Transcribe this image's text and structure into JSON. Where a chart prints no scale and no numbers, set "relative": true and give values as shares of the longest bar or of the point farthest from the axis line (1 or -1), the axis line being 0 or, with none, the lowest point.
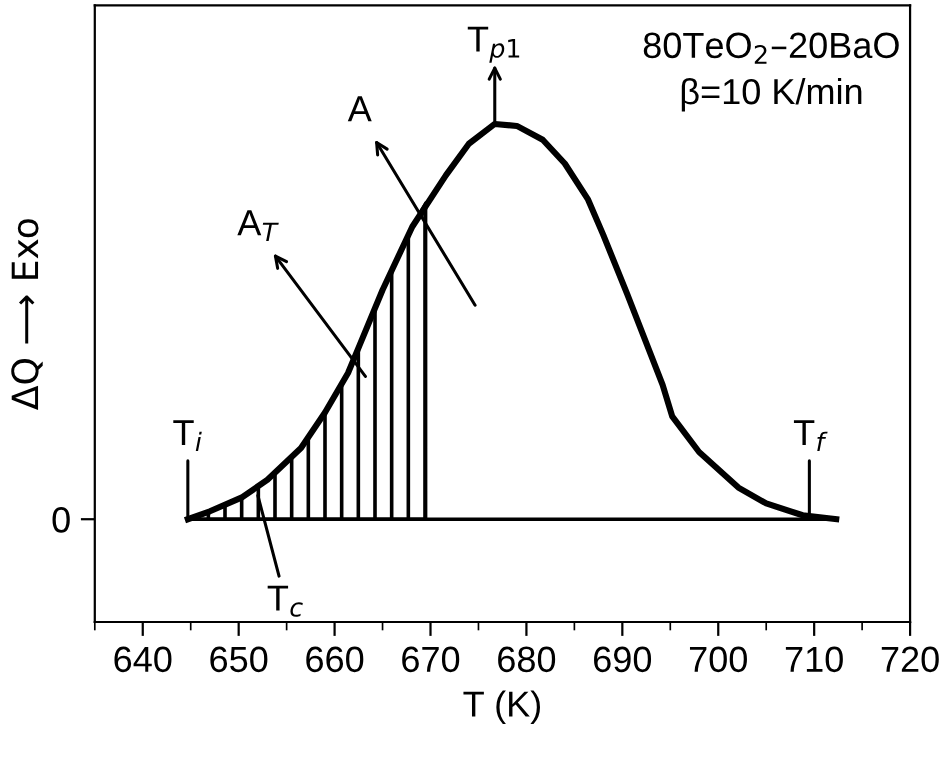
{
  "chart_data": {
    "type": "line",
    "relative": true,
    "xlabel": "T (K)",
    "ylabel": "ΔQ ⟶ Exo",
    "x": [
      644.7,
      647,
      650.4,
      653,
      656.5,
      659,
      661.4,
      662.6,
      665,
      668.1,
      671.6,
      674,
      676.7,
      679,
      681.7,
      684,
      686.4,
      688,
      690.5,
      694.2,
      695.2,
      698,
      702.1,
      705,
      708.8,
      712.3
    ],
    "series": [
      {
        "color": "#000000",
        "values": [
          0,
          0.02,
          0.056,
          0.1,
          0.18,
          0.27,
          0.37,
          0.44,
          0.58,
          0.74,
          0.87,
          0.95,
          1.0,
          0.995,
          0.96,
          0.9,
          0.81,
          0.72,
          0.57,
          0.34,
          0.26,
          0.17,
          0.08,
          0.04,
          0.01,
          0
        ]
      },
      {
        "type": "area",
        "color": "#000000",
        "x": [
          644.7,
          647,
          650.4,
          653,
          656.5,
          659,
          661.4,
          662.6,
          665,
          668.1,
          669.5
        ],
        "values": [
          0,
          0.02,
          0.056,
          0.1,
          0.18,
          0.27,
          0.37,
          0.44,
          0.58,
          0.74,
          0.8
        ]
      }
    ],
    "xlim": [
      635,
      720
    ],
    "xticks": [
      640,
      650,
      660,
      670,
      680,
      690,
      700,
      710,
      720
    ],
    "annotations": [
      "0",
      "80TeO$_{2}$–20BaO",
      "β=10 K/min",
      "A",
      "A$_{T}$",
      {
        "text": "T$_{p1}$",
        "x": 676.7,
        "y": 1.0
      },
      {
        "text": "T$_{i}$",
        "x": 644.7,
        "y": 0
      },
      {
        "text": "T$_{c}$",
        "x": 652,
        "y": 0.06
      },
      {
        "text": "T$_{f}$",
        "x": 709.5,
        "y": 0
      }
    ],
    "grid": false,
    "legend": false
  }
}
